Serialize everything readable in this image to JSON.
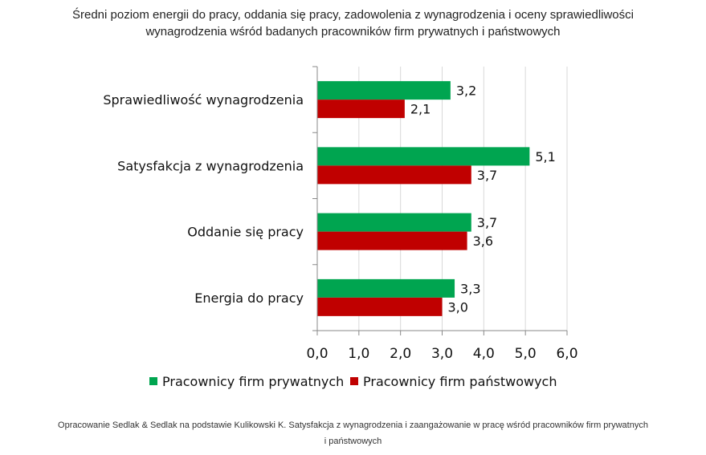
{
  "title_line1": "Średni poziom energii do pracy, oddania się pracy, zadowolenia z wynagrodzenia i oceny sprawiedliwości",
  "title_line2": "wynagrodzenia wśród badanych pracowników firm prywatnych i państwowych",
  "footer_line1": "Opracowanie Sedlak & Sedlak na podstawie Kulikowski K. Satysfakcja z wynagrodzenia i zaangażowanie w pracę wśród pracowników firm prywatnych",
  "footer_line2": "i państwowych",
  "colors": {
    "private": "#00a550",
    "state": "#c00000"
  },
  "chart_data": {
    "type": "bar",
    "orientation": "horizontal",
    "title": "Średni poziom energii do pracy, oddania się pracy, zadowolenia z wynagrodzenia i oceny sprawiedliwości wynagrodzenia wśród badanych pracowników firm prywatnych i państwowych",
    "categories": [
      "Sprawiedliwość wynagrodzenia",
      "Satysfakcja z wynagrodzenia",
      "Oddanie się pracy",
      "Energia do pracy"
    ],
    "series": [
      {
        "name": "Pracownicy firm prywatnych",
        "values": [
          3.2,
          5.1,
          3.7,
          3.3
        ],
        "labels": [
          "3,2",
          "5,1",
          "3,7",
          "3,3"
        ],
        "color": "#00a550"
      },
      {
        "name": "Pracownicy firm państwowych",
        "values": [
          2.1,
          3.7,
          3.6,
          3.0
        ],
        "labels": [
          "2,1",
          "3,7",
          "3,6",
          "3,0"
        ],
        "color": "#c00000"
      }
    ],
    "xlim": [
      0,
      6
    ],
    "xticks": [
      0,
      1,
      2,
      3,
      4,
      5,
      6
    ],
    "xtick_labels": [
      "0,0",
      "1,0",
      "2,0",
      "3,0",
      "4,0",
      "5,0",
      "6,0"
    ],
    "grid": "vertical",
    "legend": "bottom"
  }
}
